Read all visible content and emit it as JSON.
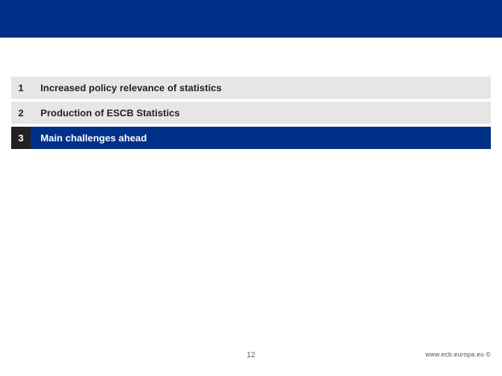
{
  "colors": {
    "header_bg": "#003189",
    "active_num_bg": "#222222",
    "active_num_fg": "#ffffff",
    "active_label_bg": "#003189",
    "active_label_fg": "#ffffff",
    "inactive_num_bg": "#e6e6e6",
    "inactive_num_fg": "#222222",
    "inactive_label_bg": "#e6e6e6",
    "inactive_label_fg": "#222222"
  },
  "agenda": {
    "rows": [
      {
        "num": "1",
        "label": "Increased policy relevance of statistics",
        "active": false
      },
      {
        "num": "2",
        "label": "Production of ESCB Statistics",
        "active": false
      },
      {
        "num": "3",
        "label": "Main challenges ahead",
        "active": true
      }
    ]
  },
  "footer": {
    "page": "12",
    "url": "www.ecb.europa.eu ©"
  }
}
